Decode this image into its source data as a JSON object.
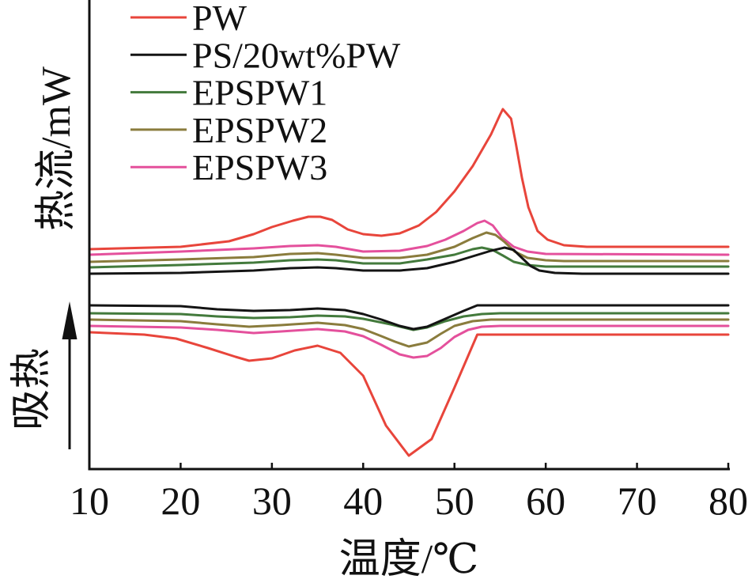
{
  "chart_data": {
    "type": "line",
    "xlabel": "温度/℃",
    "ylabel": "热流/mW",
    "annotation": {
      "text": "吸热",
      "arrow_icon": "arrow-up-icon"
    },
    "xlim": [
      10,
      80
    ],
    "ylim": [
      0,
      60
    ],
    "xticks": [
      10,
      20,
      30,
      40,
      50,
      60,
      70,
      80
    ],
    "grid": false,
    "legend_position": "top-left",
    "series": [
      {
        "name": "PW",
        "color": "#e8453b",
        "curves": [
          [
            [
              10,
              27.8
            ],
            [
              20,
              28.1
            ],
            [
              25.3,
              28.8
            ],
            [
              28,
              29.7
            ],
            [
              30,
              30.6
            ],
            [
              32.3,
              31.4
            ],
            [
              34,
              31.9
            ],
            [
              35.3,
              31.9
            ],
            [
              36.6,
              31.5
            ],
            [
              38.3,
              30.3
            ],
            [
              40,
              29.7
            ],
            [
              42,
              29.5
            ],
            [
              44,
              29.8
            ],
            [
              46.1,
              30.8
            ],
            [
              48,
              32.5
            ],
            [
              50,
              35.1
            ],
            [
              52,
              38.3
            ],
            [
              54,
              42.3
            ],
            [
              55,
              44.8
            ],
            [
              55.3,
              45.5
            ],
            [
              56.2,
              44.3
            ],
            [
              56.7,
              41.3
            ],
            [
              57.4,
              36.8
            ],
            [
              58.1,
              33.1
            ],
            [
              59.1,
              30.1
            ],
            [
              60.2,
              29.0
            ],
            [
              62,
              28.3
            ],
            [
              64.5,
              28.1
            ],
            [
              80,
              28.1
            ]
          ],
          [
            [
              10,
              17.3
            ],
            [
              16,
              17.0
            ],
            [
              19.5,
              16.5
            ],
            [
              23,
              15.3
            ],
            [
              26,
              14.2
            ],
            [
              27.5,
              13.7
            ],
            [
              30,
              14.0
            ],
            [
              32.5,
              15.0
            ],
            [
              35,
              15.6
            ],
            [
              37.5,
              14.7
            ],
            [
              40,
              11.8
            ],
            [
              42.5,
              5.5
            ],
            [
              45,
              1.7
            ],
            [
              47.5,
              3.8
            ],
            [
              50,
              10.3
            ],
            [
              52.5,
              17.0
            ],
            [
              80,
              17.0
            ]
          ]
        ]
      },
      {
        "name": "PS/20wt%PW",
        "color": "#141414",
        "curves": [
          [
            [
              10,
              24.7
            ],
            [
              20,
              24.8
            ],
            [
              28,
              25.1
            ],
            [
              32,
              25.4
            ],
            [
              35,
              25.5
            ],
            [
              37,
              25.4
            ],
            [
              40,
              25.1
            ],
            [
              44,
              25.1
            ],
            [
              47,
              25.4
            ],
            [
              50,
              26.2
            ],
            [
              52,
              26.9
            ],
            [
              54,
              27.6
            ],
            [
              55.5,
              28.0
            ],
            [
              56.5,
              27.7
            ],
            [
              57.3,
              26.8
            ],
            [
              58.3,
              25.7
            ],
            [
              59.3,
              25.1
            ],
            [
              61,
              24.8
            ],
            [
              64,
              24.7
            ],
            [
              80,
              24.7
            ]
          ],
          [
            [
              10,
              20.7
            ],
            [
              20,
              20.6
            ],
            [
              24,
              20.2
            ],
            [
              28,
              20.0
            ],
            [
              32,
              20.1
            ],
            [
              35,
              20.3
            ],
            [
              38,
              20.1
            ],
            [
              40,
              19.6
            ],
            [
              42,
              18.9
            ],
            [
              44,
              18.1
            ],
            [
              45.5,
              17.7
            ],
            [
              47,
              18.0
            ],
            [
              49,
              19.0
            ],
            [
              51,
              20.0
            ],
            [
              52.5,
              20.7
            ],
            [
              80,
              20.7
            ]
          ]
        ]
      },
      {
        "name": "EPSPW1",
        "color": "#437a3c",
        "curves": [
          [
            [
              10,
              25.5
            ],
            [
              20,
              25.8
            ],
            [
              28,
              26.1
            ],
            [
              32,
              26.4
            ],
            [
              35,
              26.5
            ],
            [
              37,
              26.4
            ],
            [
              40,
              26.0
            ],
            [
              44,
              26.0
            ],
            [
              47,
              26.5
            ],
            [
              50,
              27.1
            ],
            [
              52,
              27.8
            ],
            [
              53,
              28.0
            ],
            [
              54.2,
              27.7
            ],
            [
              55.3,
              27.0
            ],
            [
              56.5,
              26.2
            ],
            [
              58,
              25.8
            ],
            [
              60,
              25.6
            ],
            [
              80,
              25.6
            ]
          ],
          [
            [
              10,
              19.7
            ],
            [
              20,
              19.6
            ],
            [
              24,
              19.3
            ],
            [
              28,
              19.1
            ],
            [
              32,
              19.2
            ],
            [
              35,
              19.4
            ],
            [
              38,
              19.3
            ],
            [
              40,
              19.0
            ],
            [
              43,
              18.3
            ],
            [
              45.5,
              17.6
            ],
            [
              47,
              17.9
            ],
            [
              49,
              18.7
            ],
            [
              51,
              19.3
            ],
            [
              53,
              19.6
            ],
            [
              55,
              19.7
            ],
            [
              80,
              19.7
            ]
          ]
        ]
      },
      {
        "name": "EPSPW2",
        "color": "#8a7c3d",
        "curves": [
          [
            [
              10,
              26.2
            ],
            [
              20,
              26.5
            ],
            [
              28,
              26.8
            ],
            [
              32,
              27.2
            ],
            [
              35,
              27.3
            ],
            [
              37,
              27.1
            ],
            [
              40,
              26.7
            ],
            [
              44,
              26.7
            ],
            [
              47,
              27.1
            ],
            [
              50,
              28.1
            ],
            [
              52,
              29.2
            ],
            [
              53.5,
              29.9
            ],
            [
              54.5,
              29.6
            ],
            [
              55.5,
              28.7
            ],
            [
              56.6,
              27.5
            ],
            [
              58,
              26.7
            ],
            [
              60,
              26.4
            ],
            [
              62,
              26.3
            ],
            [
              80,
              26.3
            ]
          ],
          [
            [
              10,
              18.9
            ],
            [
              20,
              18.7
            ],
            [
              24,
              18.3
            ],
            [
              27.5,
              18.0
            ],
            [
              31,
              18.2
            ],
            [
              35,
              18.5
            ],
            [
              38,
              18.2
            ],
            [
              40,
              17.7
            ],
            [
              42,
              16.8
            ],
            [
              43.5,
              16.1
            ],
            [
              45,
              15.5
            ],
            [
              47,
              16.0
            ],
            [
              48.5,
              17.1
            ],
            [
              50,
              18.1
            ],
            [
              52,
              18.7
            ],
            [
              54,
              18.9
            ],
            [
              80,
              18.9
            ]
          ]
        ]
      },
      {
        "name": "EPSPW3",
        "color": "#e4509c",
        "curves": [
          [
            [
              10,
              27.1
            ],
            [
              20,
              27.5
            ],
            [
              28,
              27.9
            ],
            [
              32,
              28.2
            ],
            [
              35,
              28.3
            ],
            [
              37,
              28.1
            ],
            [
              40,
              27.5
            ],
            [
              44,
              27.6
            ],
            [
              47,
              28.2
            ],
            [
              49,
              29.0
            ],
            [
              51,
              30.1
            ],
            [
              52.5,
              31.1
            ],
            [
              53.3,
              31.4
            ],
            [
              54.2,
              30.8
            ],
            [
              55.2,
              29.3
            ],
            [
              56.5,
              28.1
            ],
            [
              58,
              27.5
            ],
            [
              60,
              27.2
            ],
            [
              80,
              27.1
            ]
          ],
          [
            [
              10,
              18.1
            ],
            [
              20,
              17.9
            ],
            [
              24,
              17.6
            ],
            [
              28,
              17.2
            ],
            [
              31,
              17.4
            ],
            [
              35,
              17.7
            ],
            [
              38,
              17.4
            ],
            [
              40,
              16.8
            ],
            [
              42,
              15.7
            ],
            [
              44,
              14.5
            ],
            [
              45.5,
              14.1
            ],
            [
              47,
              14.3
            ],
            [
              48.5,
              15.3
            ],
            [
              50,
              16.7
            ],
            [
              51.5,
              17.6
            ],
            [
              53,
              18.0
            ],
            [
              55,
              18.1
            ],
            [
              80,
              18.1
            ]
          ]
        ]
      }
    ]
  }
}
